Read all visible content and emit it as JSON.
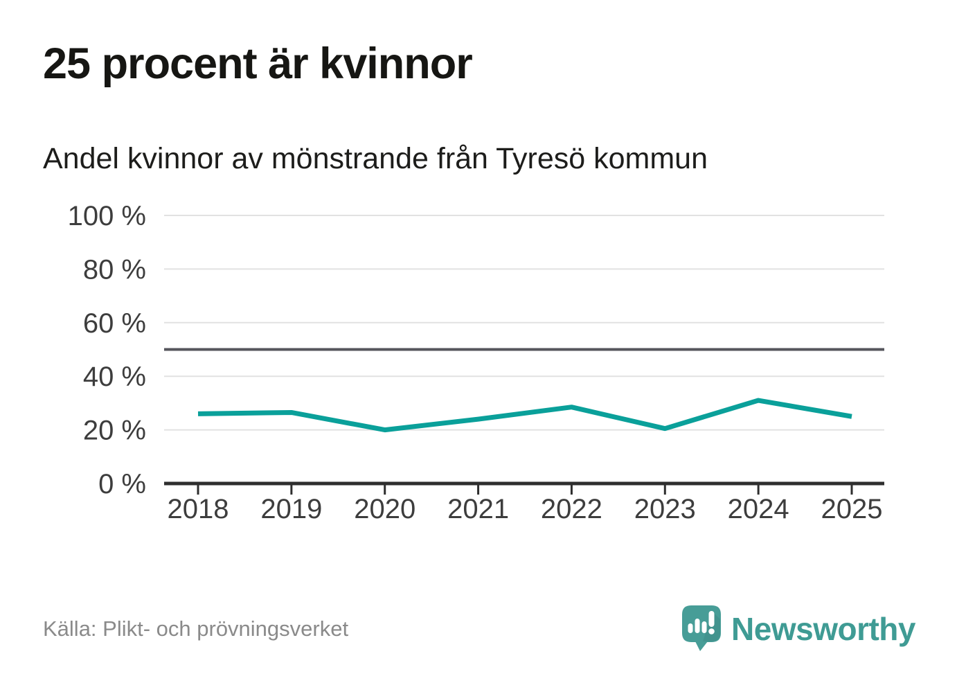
{
  "header": {
    "title": "25 procent är kvinnor",
    "subtitle": "Andel kvinnor av mönstrande från Tyresö kommun"
  },
  "chart_data": {
    "type": "line",
    "title": "25 procent är kvinnor",
    "subtitle": "Andel kvinnor av mönstrande från Tyresö kommun",
    "categories": [
      "2018",
      "2019",
      "2020",
      "2021",
      "2022",
      "2023",
      "2024",
      "2025"
    ],
    "values": [
      26,
      26.5,
      20,
      24,
      28.5,
      20.5,
      31,
      25
    ],
    "unit": "%",
    "xlabel": "",
    "ylabel": "",
    "ylim": [
      0,
      100
    ],
    "yticks": [
      0,
      20,
      40,
      60,
      80,
      100
    ],
    "ytick_labels": [
      "0 %",
      "20 %",
      "40 %",
      "60 %",
      "80 %",
      "100 %"
    ],
    "reference_line_value": 50,
    "grid": true,
    "legend": false
  },
  "footer": {
    "source": "Källa: Plikt- och prövningsverket",
    "brand": "Newsworthy"
  },
  "icons": {
    "logo_icon": "speech-bubble-bar-chart-icon"
  },
  "colors": {
    "line_teal": "#0aa09a",
    "logo_teal": "#479d97",
    "brand_text_teal": "#3f9b94",
    "title_text": "#161613",
    "axis_text": "#3d3d3d",
    "grid_line": "#e2e2e2",
    "reference_line": "#55555c",
    "axis_line": "#2e2e2e",
    "source_text": "#8a8a8a",
    "background": "#ffffff"
  }
}
